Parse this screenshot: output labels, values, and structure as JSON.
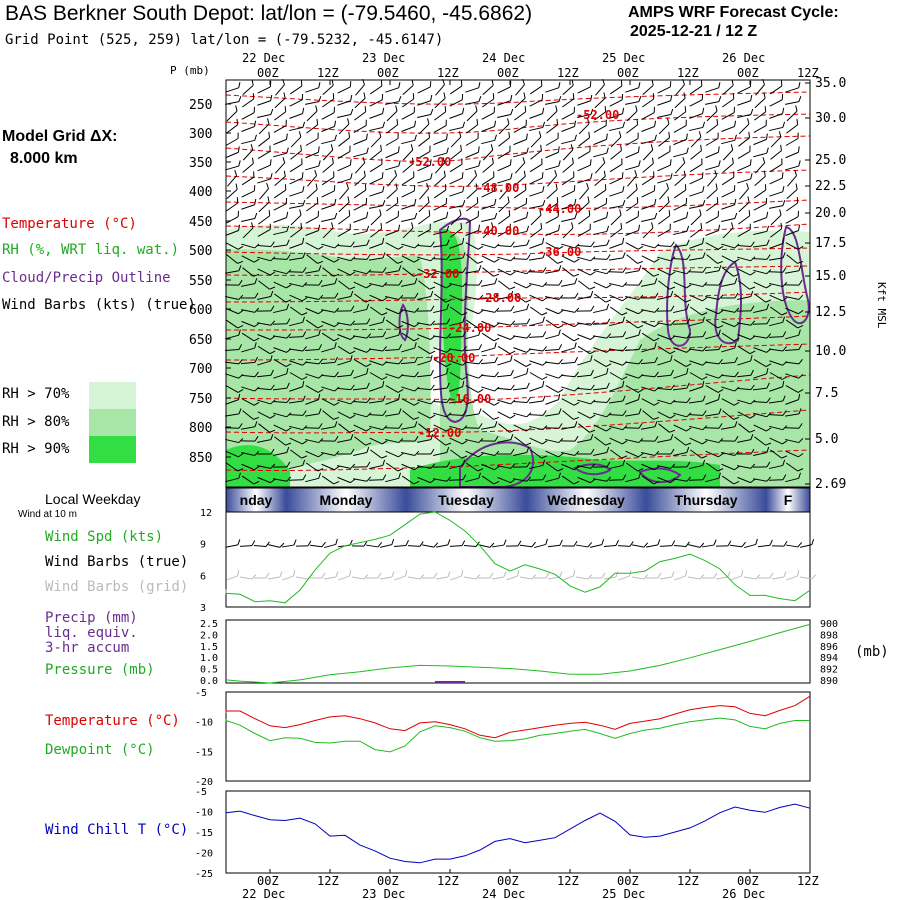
{
  "header": {
    "title": "BAS Berkner South Depot:  lat/lon = (-79.5460, -45.6862)",
    "grid_point": "Grid Point (525, 259) lat/lon = (-79.5232, -45.6147)",
    "cycle_line1": "AMPS WRF Forecast Cycle:",
    "cycle_line2": "2025-12-21 / 12  Z"
  },
  "left_panel": {
    "model_grid_line1": "Model Grid ΔX:",
    "model_grid_line2": "8.000 km",
    "legend_temperature": "Temperature (°C)",
    "legend_rh": "RH (%, WRT liq. wat.)",
    "legend_cloud": "Cloud/Precip Outline",
    "legend_wind": "Wind Barbs (kts) (true)",
    "rh_70": "RH > 70%",
    "rh_80": "RH > 80%",
    "rh_90": "RH > 90%",
    "local_weekday": "Local Weekday",
    "wind_at_10m": "Wind at 10 m",
    "wind_spd": "Wind Spd (kts)",
    "wind_barbs_true": "Wind Barbs (true)",
    "wind_barbs_grid": "Wind Barbs (grid)",
    "precip_line1": "Precip (mm)",
    "precip_line2": "liq. equiv.",
    "precip_line3": "3-hr accum",
    "pressure": "Pressure (mb)",
    "temperature": "Temperature (°C)",
    "dewpoint": "Dewpoint (°C)",
    "wind_chill": "Wind Chill T (°C)",
    "pressure_unit": "(mb)",
    "p_axis_label": "P (mb)",
    "kft_label": "Kft MSL"
  },
  "colors": {
    "temperature": "#dd0000",
    "rh": "#22bb22",
    "cloud": "#6a2c8f",
    "wind_chill": "#0000bb",
    "rh70": "#d6f5d6",
    "rh80": "#a8e6a8",
    "rh90": "#33dd44",
    "weekday_band": "#3a4c9a"
  },
  "time_axis": {
    "top_ticks": [
      "00Z",
      "12Z",
      "00Z",
      "12Z",
      "00Z",
      "12Z",
      "00Z",
      "12Z",
      "00Z",
      "12Z"
    ],
    "top_dates": [
      "22 Dec",
      "23 Dec",
      "24 Dec",
      "25 Dec",
      "26 Dec"
    ],
    "bottom_ticks": [
      "00Z",
      "12Z",
      "00Z",
      "12Z",
      "00Z",
      "12Z",
      "00Z",
      "12Z",
      "00Z",
      "12Z"
    ],
    "bottom_dates": [
      "22 Dec",
      "23 Dec",
      "24 Dec",
      "25 Dec",
      "26 Dec"
    ]
  },
  "weekdays": [
    "nday",
    "Monday",
    "Tuesday",
    "Wednesday",
    "Thursday",
    "F"
  ],
  "chart_data": [
    {
      "type": "time-height cross section",
      "name": "upper",
      "pressure_ticks": [
        "250",
        "300",
        "350",
        "400",
        "450",
        "500",
        "550",
        "600",
        "650",
        "700",
        "750",
        "800",
        "850"
      ],
      "height_ticks_kft": [
        "35.0",
        "30.0",
        "25.0",
        "22.5",
        "20.0",
        "17.5",
        "15.0",
        "12.5",
        "10.0",
        "7.5",
        "5.0",
        "2.69"
      ],
      "temperature_contour_labels": [
        "-52.00",
        "-52.00",
        "-48.00",
        "-44.00",
        "-40.00",
        "-36.00",
        "-32.00",
        "-28.00",
        "-24.00",
        "-20.00",
        "-16.00",
        "-12.00"
      ]
    },
    {
      "type": "line",
      "name": "wind speed",
      "ylabel": "Wind Spd (kts)",
      "ylim": [
        3,
        12
      ],
      "y_ticks": [
        "12",
        "9",
        "6",
        "3"
      ],
      "x_hours": [
        -12,
        -9,
        -6,
        -3,
        0,
        3,
        6,
        9,
        12,
        15,
        18,
        21,
        24,
        27,
        30,
        33,
        36,
        39,
        42,
        45,
        48,
        51,
        54,
        57,
        60,
        63,
        66,
        69,
        72,
        75,
        78,
        81,
        84,
        87,
        90,
        93,
        96,
        99,
        102,
        105,
        108
      ],
      "values": [
        4.7,
        4.3,
        4.2,
        3.5,
        3.6,
        3.4,
        4.6,
        6.5,
        8.1,
        8.8,
        9.1,
        9.4,
        9.8,
        10.8,
        11.8,
        12.0,
        11.2,
        10.2,
        8.8,
        7.1,
        6.4,
        7.0,
        6.6,
        6.1,
        5.0,
        4.4,
        4.9,
        6.2,
        6.2,
        6.4,
        7.3,
        7.6,
        8.0,
        7.4,
        6.6,
        5.1,
        4.1,
        4.1,
        3.8,
        3.6,
        4.6
      ]
    },
    {
      "type": "line",
      "name": "pressure and precip",
      "ylabel_left": "Precip (mm)",
      "ylabel_right": "Pressure (mb)",
      "left_ticks": [
        "2.5",
        "2.0",
        "1.5",
        "1.0",
        "0.5",
        "0.0"
      ],
      "right_ticks": [
        "900",
        "898",
        "896",
        "894",
        "892",
        "890"
      ],
      "x_hours": [
        -12,
        -6,
        0,
        6,
        12,
        18,
        24,
        30,
        36,
        42,
        48,
        54,
        60,
        66,
        72,
        78,
        84,
        90,
        96,
        102,
        108
      ],
      "pressure_mb": [
        890.5,
        890.3,
        890.0,
        890.5,
        891.3,
        891.8,
        892.4,
        892.8,
        892.7,
        892.5,
        892.3,
        891.9,
        891.4,
        891.4,
        891.9,
        892.8,
        894.0,
        895.3,
        896.6,
        898.0,
        899.3
      ],
      "precip_mm": [
        0,
        0,
        0,
        0,
        0,
        0,
        0,
        0,
        0.05,
        0,
        0,
        0,
        0,
        0,
        0,
        0,
        0,
        0,
        0,
        0,
        0
      ]
    },
    {
      "type": "line",
      "name": "temperature and dewpoint",
      "ylim": [
        -20,
        -5
      ],
      "y_ticks": [
        "-5",
        "-10",
        "-15",
        "-20"
      ],
      "x_hours": [
        -12,
        -9,
        -6,
        -3,
        0,
        3,
        6,
        9,
        12,
        15,
        18,
        21,
        24,
        27,
        30,
        33,
        36,
        39,
        42,
        45,
        48,
        51,
        54,
        57,
        60,
        63,
        66,
        69,
        72,
        75,
        78,
        81,
        84,
        87,
        90,
        93,
        96,
        99,
        102,
        105,
        108
      ],
      "series": [
        {
          "name": "Temperature",
          "values": [
            -8.6,
            -8.2,
            -8.2,
            -9.5,
            -10.7,
            -11.0,
            -10.5,
            -9.8,
            -9.2,
            -9.0,
            -9.5,
            -10.2,
            -11.2,
            -11.5,
            -10.2,
            -10.0,
            -10.5,
            -11.2,
            -12.3,
            -12.7,
            -11.8,
            -11.4,
            -11.0,
            -10.6,
            -10.3,
            -10.1,
            -10.6,
            -11.3,
            -10.3,
            -9.9,
            -9.5,
            -8.7,
            -8.0,
            -7.6,
            -7.3,
            -7.5,
            -8.6,
            -9.0,
            -8.1,
            -7.3,
            -5.7
          ]
        },
        {
          "name": "Dewpoint",
          "values": [
            -9.6,
            -9.8,
            -10.6,
            -12.0,
            -13.2,
            -12.7,
            -12.8,
            -13.5,
            -13.6,
            -13.3,
            -13.3,
            -14.7,
            -15.1,
            -14.1,
            -11.7,
            -10.7,
            -11.0,
            -11.6,
            -12.7,
            -13.3,
            -13.2,
            -12.9,
            -12.3,
            -12.0,
            -11.6,
            -11.3,
            -12.0,
            -12.8,
            -12.0,
            -11.4,
            -11.1,
            -10.5,
            -10.0,
            -9.7,
            -9.4,
            -9.7,
            -10.8,
            -11.2,
            -10.3,
            -9.8,
            -9.8
          ]
        }
      ]
    },
    {
      "type": "line",
      "name": "wind chill",
      "ylabel": "Wind Chill T (°C)",
      "ylim": [
        -25,
        -5
      ],
      "y_ticks": [
        "-5",
        "-10",
        "-15",
        "-20",
        "-25"
      ],
      "x_hours": [
        -12,
        -9,
        -6,
        -3,
        0,
        3,
        6,
        9,
        12,
        15,
        18,
        21,
        24,
        27,
        30,
        33,
        36,
        39,
        42,
        45,
        48,
        51,
        54,
        57,
        60,
        63,
        66,
        69,
        72,
        75,
        78,
        81,
        84,
        87,
        90,
        93,
        96,
        99,
        102,
        105,
        108
      ],
      "values": [
        -10.5,
        -10.3,
        -9.9,
        -11.0,
        -12.0,
        -12.2,
        -11.6,
        -13.0,
        -16.0,
        -15.8,
        -18.2,
        -19.6,
        -21.4,
        -22.2,
        -22.5,
        -21.6,
        -21.6,
        -20.8,
        -19.4,
        -17.3,
        -16.6,
        -17.6,
        -17.0,
        -16.4,
        -14.3,
        -12.2,
        -10.4,
        -12.4,
        -15.7,
        -16.3,
        -16.0,
        -15.0,
        -14.0,
        -12.3,
        -10.3,
        -8.9,
        -9.7,
        -10.2,
        -9.0,
        -8.2,
        -9.2
      ]
    }
  ]
}
